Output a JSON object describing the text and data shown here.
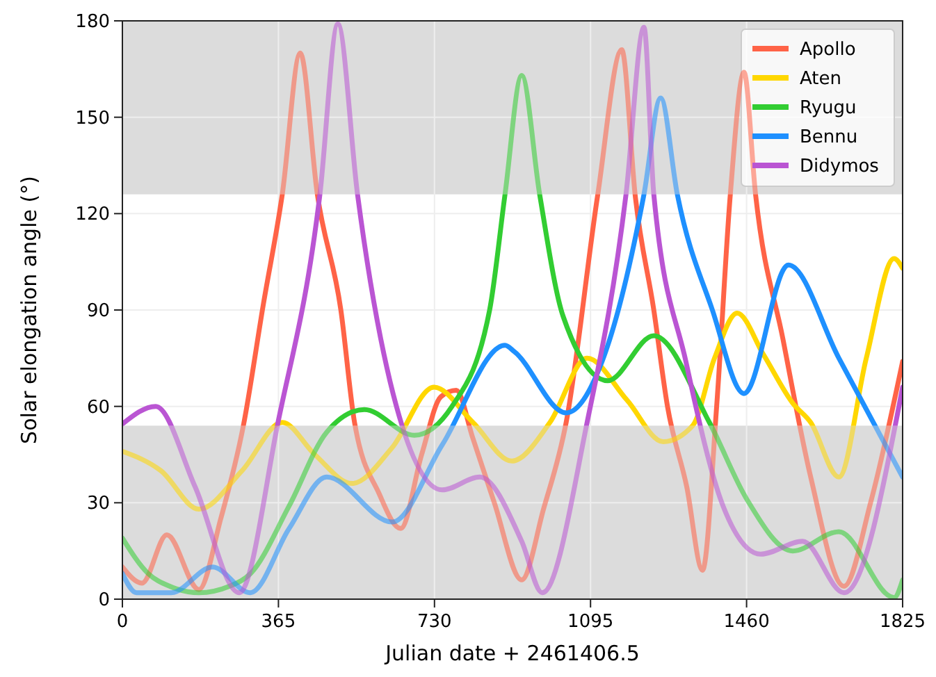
{
  "chart_data": {
    "type": "line",
    "xlabel": "Julian date + 2461406.5",
    "ylabel": "Solar elongation angle (°)",
    "xlim": [
      0,
      1825
    ],
    "xticks": [
      0,
      365,
      730,
      1095,
      1460,
      1825
    ],
    "ylim": [
      0,
      180
    ],
    "yticks": [
      0,
      30,
      60,
      90,
      120,
      150,
      180
    ],
    "grid": true,
    "legend": "top right",
    "line_style": "solid",
    "marker": "none",
    "bands": [
      {
        "axis": "y",
        "from": 0,
        "to": 54,
        "color": "#dcdcdc"
      },
      {
        "axis": "y",
        "from": 126,
        "to": 180,
        "color": "#dcdcdc"
      }
    ],
    "series": [
      {
        "name": "Apollo",
        "color": "#ff6347",
        "x": [
          0,
          46,
          104,
          179,
          230,
          283,
          330,
          374,
          416,
          456,
          511,
          543,
          600,
          651,
          700,
          745,
          781,
          820,
          870,
          934,
          985,
          1038,
          1112,
          1168,
          1200,
          1243,
          1275,
          1320,
          1357,
          1390,
          1422,
          1454,
          1481,
          1545,
          1610,
          1688,
          1750,
          1825
        ],
        "values": [
          10,
          5,
          20,
          3,
          25,
          54,
          92,
          126,
          170,
          126,
          90,
          55,
          33,
          22,
          45,
          63,
          65,
          50,
          30,
          6,
          28,
          55,
          126,
          171,
          125,
          90,
          60,
          35,
          9,
          60,
          126,
          164,
          126,
          81,
          38,
          4,
          30,
          74
        ]
      },
      {
        "name": "Aten",
        "color": "#ffd700",
        "x": [
          0,
          90,
          179,
          280,
          374,
          450,
          537,
          630,
          729,
          820,
          911,
          1000,
          1087,
          1180,
          1265,
          1334,
          1385,
          1438,
          1500,
          1568,
          1610,
          1676,
          1740,
          1805,
          1825
        ],
        "values": [
          46,
          40,
          28,
          40,
          55,
          45,
          36,
          47,
          66,
          55,
          43,
          55,
          75,
          62,
          49,
          54,
          75,
          89,
          76,
          61,
          55,
          38,
          75,
          106,
          103
        ]
      },
      {
        "name": "Ryugu",
        "color": "#32cd32",
        "x": [
          0,
          60,
          111,
          179,
          250,
          300,
          390,
          478,
          566,
          683,
          771,
          859,
          895,
          934,
          976,
          1031,
          1135,
          1243,
          1373,
          1461,
          1568,
          1676,
          1805,
          1825
        ],
        "values": [
          19,
          8,
          4,
          2,
          4,
          8,
          29,
          52,
          59,
          51,
          60,
          90,
          126,
          163,
          126,
          88,
          68,
          82,
          55,
          31,
          15,
          21,
          0.5,
          6
        ]
      },
      {
        "name": "Bennu",
        "color": "#1e90ff",
        "x": [
          0,
          33,
          114,
          211,
          299,
          390,
          478,
          631,
          748,
          895,
          917,
          1038,
          1122,
          1220,
          1259,
          1298,
          1380,
          1454,
          1558,
          1676,
          1825
        ],
        "values": [
          8,
          2,
          2,
          10,
          2,
          22,
          38,
          24,
          48,
          79,
          77,
          58,
          74,
          126,
          156,
          126,
          90,
          64,
          104,
          75,
          38
        ]
      },
      {
        "name": "Didymos",
        "color": "#ba55d3",
        "x": [
          0,
          78,
          170,
          273,
          364,
          462,
          504,
          550,
          641,
          748,
          836,
          934,
          982,
          1087,
          1178,
          1220,
          1243,
          1318,
          1405,
          1493,
          1591,
          1688,
          1825
        ],
        "values": [
          54.5,
          60,
          35,
          2,
          55,
          126,
          179,
          126,
          60,
          34,
          38,
          18,
          2,
          55,
          126,
          178,
          126,
          74,
          29,
          14,
          18,
          2,
          66
        ]
      }
    ]
  }
}
